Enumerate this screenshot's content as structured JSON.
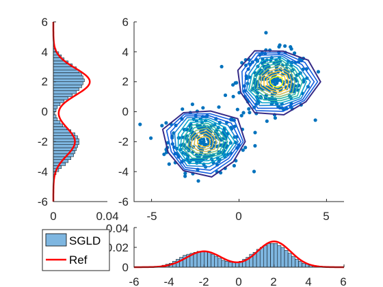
{
  "chart_data": [
    {
      "panel": "joint",
      "type": "scatter",
      "xlim": [
        -6,
        6
      ],
      "ylim": [
        -6,
        6
      ],
      "xticks": [
        "-5",
        "0",
        "5"
      ],
      "yticks": [
        "6",
        "4",
        "2",
        "0",
        "-2",
        "-4",
        "-6"
      ],
      "modes": [
        {
          "x": -2,
          "y": -2
        },
        {
          "x": 2,
          "y": 2
        }
      ],
      "contour_levels": 12,
      "colors": {
        "points": "#0072BD",
        "contour_low": "#352A87",
        "contour_high": "#F9FB0E"
      }
    },
    {
      "panel": "marginal-y",
      "type": "bar",
      "orientation": "horizontal",
      "ylim": [
        -6,
        6
      ],
      "xlim": [
        0,
        0.04
      ],
      "xticks": [
        "0",
        "0.04"
      ],
      "yticks": [
        "6",
        "4",
        "2",
        "0",
        "-2",
        "-4",
        "-6"
      ],
      "series": [
        {
          "name": "SGLD",
          "kind": "histogram",
          "color": "#7EB6E0",
          "bin_centers": [
            -4.3,
            -4.1,
            -3.9,
            -3.7,
            -3.5,
            -3.3,
            -3.1,
            -2.9,
            -2.7,
            -2.5,
            -2.3,
            -2.1,
            -1.9,
            -1.7,
            -1.5,
            -1.3,
            -1.1,
            -0.9,
            -0.7,
            -0.5,
            -0.3,
            -0.1,
            0.1,
            0.3,
            0.5,
            0.7,
            0.9,
            1.1,
            1.3,
            1.5,
            1.7,
            1.9,
            2.1,
            2.3,
            2.5,
            2.7,
            2.9,
            3.1,
            3.3,
            3.5,
            3.7,
            3.9,
            4.1,
            4.3
          ],
          "values": [
            0.001,
            0.002,
            0.004,
            0.006,
            0.009,
            0.011,
            0.013,
            0.015,
            0.016,
            0.017,
            0.018,
            0.019,
            0.019,
            0.018,
            0.016,
            0.013,
            0.01,
            0.007,
            0.005,
            0.003,
            0.002,
            0.001,
            0.002,
            0.003,
            0.005,
            0.008,
            0.011,
            0.014,
            0.017,
            0.019,
            0.021,
            0.022,
            0.023,
            0.022,
            0.021,
            0.019,
            0.017,
            0.014,
            0.011,
            0.008,
            0.006,
            0.004,
            0.002,
            0.001
          ]
        },
        {
          "name": "Ref",
          "kind": "line",
          "color": "#FF0000",
          "mode_heights": [
            0.016,
            0.027
          ]
        }
      ]
    },
    {
      "panel": "marginal-x",
      "type": "bar",
      "xlim": [
        -6,
        6
      ],
      "ylim": [
        0,
        0.04
      ],
      "xticks": [
        "-6",
        "-4",
        "-2",
        "0",
        "2",
        "4",
        "6"
      ],
      "yticks": [
        "0.04",
        "0.02",
        "0"
      ],
      "series": [
        {
          "name": "SGLD",
          "kind": "histogram",
          "color": "#7EB6E0",
          "bin_centers": [
            -4.5,
            -4.3,
            -4.1,
            -3.9,
            -3.7,
            -3.5,
            -3.3,
            -3.1,
            -2.9,
            -2.7,
            -2.5,
            -2.3,
            -2.1,
            -1.9,
            -1.7,
            -1.5,
            -1.3,
            -1.1,
            -0.9,
            -0.7,
            -0.5,
            -0.3,
            -0.1,
            0.1,
            0.3,
            0.5,
            0.7,
            0.9,
            1.1,
            1.3,
            1.5,
            1.7,
            1.9,
            2.1,
            2.3,
            2.5,
            2.7,
            2.9,
            3.1,
            3.3,
            3.5,
            3.7,
            3.9,
            4.1,
            4.3,
            4.5
          ],
          "values": [
            0.001,
            0.002,
            0.003,
            0.004,
            0.006,
            0.008,
            0.01,
            0.012,
            0.013,
            0.014,
            0.015,
            0.016,
            0.016,
            0.016,
            0.015,
            0.013,
            0.011,
            0.009,
            0.007,
            0.006,
            0.005,
            0.005,
            0.005,
            0.006,
            0.008,
            0.01,
            0.013,
            0.015,
            0.018,
            0.02,
            0.022,
            0.024,
            0.024,
            0.024,
            0.022,
            0.02,
            0.017,
            0.014,
            0.011,
            0.008,
            0.006,
            0.004,
            0.003,
            0.002,
            0.001,
            0.001
          ]
        },
        {
          "name": "Ref",
          "kind": "line",
          "color": "#FF0000",
          "mode_heights": [
            0.016,
            0.026
          ]
        }
      ]
    }
  ],
  "legend": {
    "placement": "bottom-left",
    "entries": [
      {
        "label": "SGLD",
        "color": "#7EB6E0"
      },
      {
        "label": "Ref",
        "color": "#FF0000"
      }
    ]
  }
}
